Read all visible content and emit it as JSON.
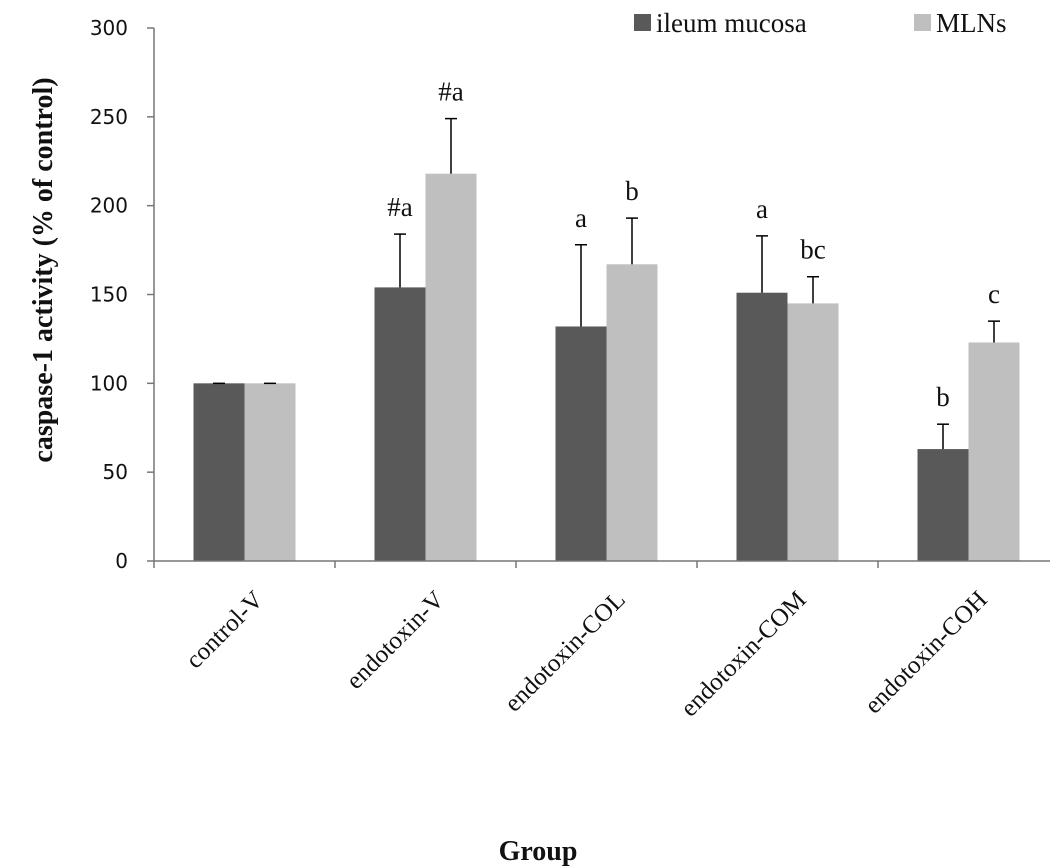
{
  "chart_data": {
    "type": "bar",
    "title": "",
    "xlabel": "Group",
    "ylabel": "caspase-1 activity (% of control)",
    "ylim": [
      0,
      300
    ],
    "yticks": [
      0,
      50,
      100,
      150,
      200,
      250,
      300
    ],
    "categories": [
      "control-V",
      "endotoxin-V",
      "endotoxin-COL",
      "endotoxin-COM",
      "endotoxin-COH"
    ],
    "series": [
      {
        "name": "ileum mucosa",
        "color": "#595959",
        "values": [
          100,
          154,
          132,
          151,
          63
        ],
        "errors": [
          0,
          30,
          46,
          32,
          14
        ],
        "annotations": [
          "",
          "#a",
          "a",
          "a",
          "b"
        ]
      },
      {
        "name": "MLNs",
        "color": "#bfbfbf",
        "values": [
          100,
          218,
          167,
          145,
          123
        ],
        "errors": [
          0,
          31,
          26,
          15,
          12
        ],
        "annotations": [
          "",
          "#a",
          "b",
          "bc",
          "c"
        ]
      }
    ],
    "grid": false,
    "legend_position": "top-right"
  }
}
